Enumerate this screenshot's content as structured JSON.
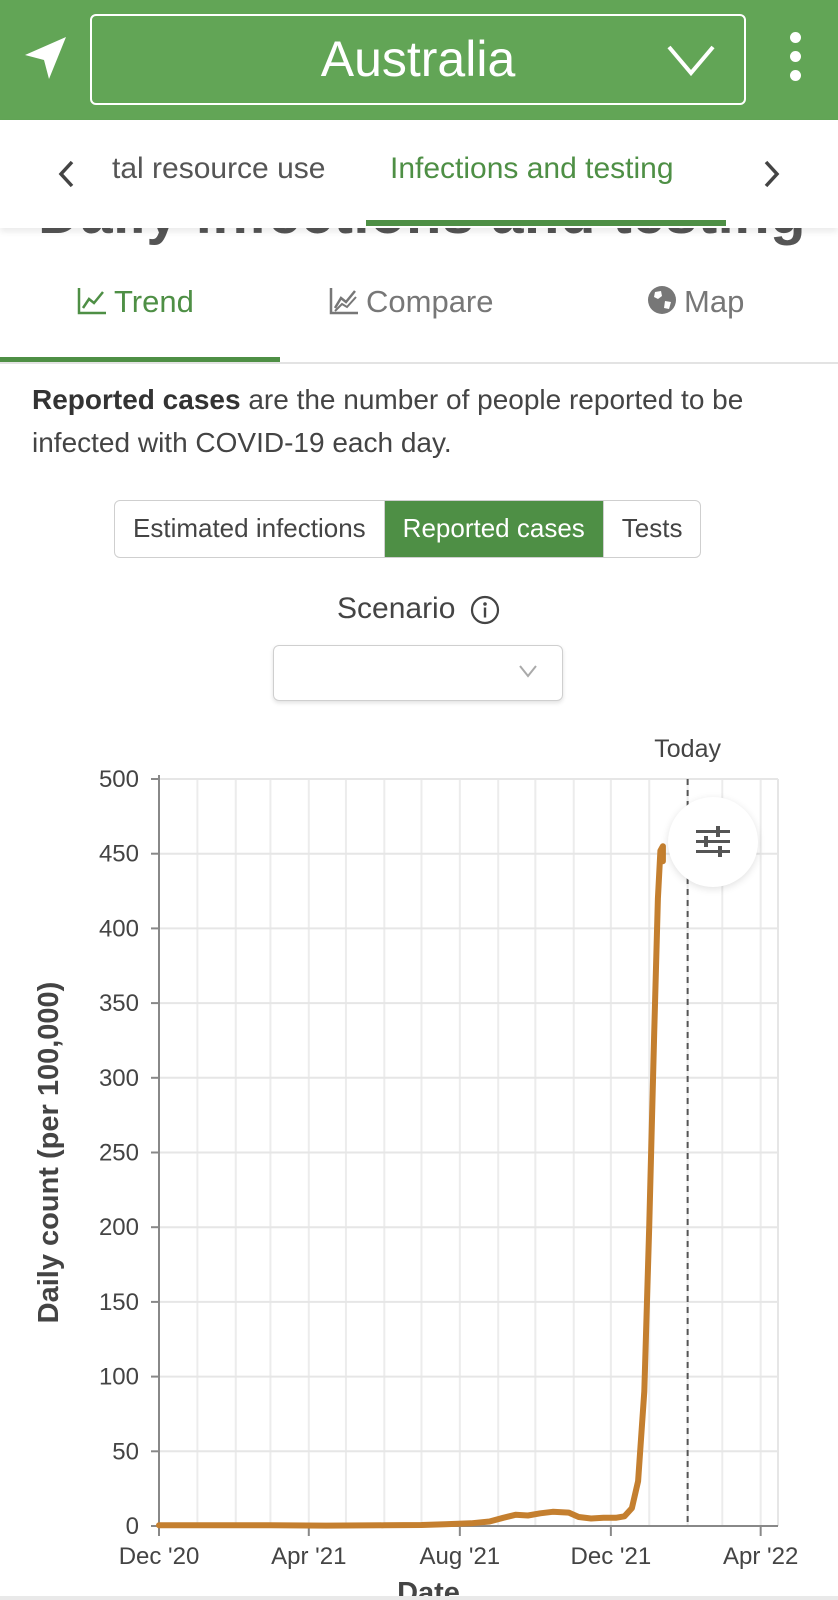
{
  "header": {
    "country": "Australia"
  },
  "section_nav": {
    "tabs": [
      {
        "label": "tal resource use",
        "active": false
      },
      {
        "label": "Infections and testing",
        "active": true
      }
    ]
  },
  "section_title": "Daily infections and testing",
  "view_tabs": [
    {
      "label": "Trend",
      "icon": "line-chart-icon",
      "active": true
    },
    {
      "label": "Compare",
      "icon": "compare-chart-icon",
      "active": false
    },
    {
      "label": "Map",
      "icon": "globe-icon",
      "active": false
    }
  ],
  "description": {
    "bold": "Reported cases",
    "rest": " are the number of people reported to be infected with COVID-19 each day."
  },
  "metric_toggle": {
    "options": [
      "Estimated infections",
      "Reported cases",
      "Tests"
    ],
    "selected": "Reported cases"
  },
  "scenario": {
    "label": "Scenario",
    "value": ""
  },
  "colors": {
    "brand_green": "#62a556",
    "active_green": "#4e8f45",
    "series_orange": "#c47f2f"
  },
  "chart_data": {
    "type": "line",
    "ylabel": "Daily count (per 100,000)",
    "xlabel": "Date",
    "ylim": [
      0,
      500
    ],
    "yticks": [
      0,
      50,
      100,
      150,
      200,
      250,
      300,
      350,
      400,
      450,
      500
    ],
    "xticks": [
      "Dec '20",
      "Apr '21",
      "Aug '21",
      "Dec '21",
      "Apr '22"
    ],
    "xlim": [
      "2020-12-01",
      "2022-04-15"
    ],
    "grid": true,
    "today_label": "Today",
    "today": "2022-02-01",
    "series": [
      {
        "points": [
          [
            "2020-12-01",
            0.5
          ],
          [
            "2021-01-15",
            0.5
          ],
          [
            "2021-03-01",
            0.5
          ],
          [
            "2021-04-15",
            0.3
          ],
          [
            "2021-06-01",
            0.5
          ],
          [
            "2021-07-01",
            0.7
          ],
          [
            "2021-07-20",
            1.2
          ],
          [
            "2021-08-10",
            1.8
          ],
          [
            "2021-08-25",
            3.0
          ],
          [
            "2021-09-05",
            5.5
          ],
          [
            "2021-09-15",
            7.5
          ],
          [
            "2021-09-25",
            7.0
          ],
          [
            "2021-10-05",
            8.5
          ],
          [
            "2021-10-15",
            9.5
          ],
          [
            "2021-10-28",
            9.0
          ],
          [
            "2021-11-05",
            6.0
          ],
          [
            "2021-11-15",
            5.0
          ],
          [
            "2021-11-25",
            5.5
          ],
          [
            "2021-12-05",
            5.5
          ],
          [
            "2021-12-12",
            6.5
          ],
          [
            "2021-12-18",
            12
          ],
          [
            "2021-12-23",
            30
          ],
          [
            "2021-12-28",
            90
          ],
          [
            "2022-01-01",
            200
          ],
          [
            "2022-01-05",
            330
          ],
          [
            "2022-01-08",
            420
          ],
          [
            "2022-01-10",
            452
          ],
          [
            "2022-01-12",
            455
          ],
          [
            "2022-01-12",
            445
          ]
        ]
      }
    ]
  }
}
